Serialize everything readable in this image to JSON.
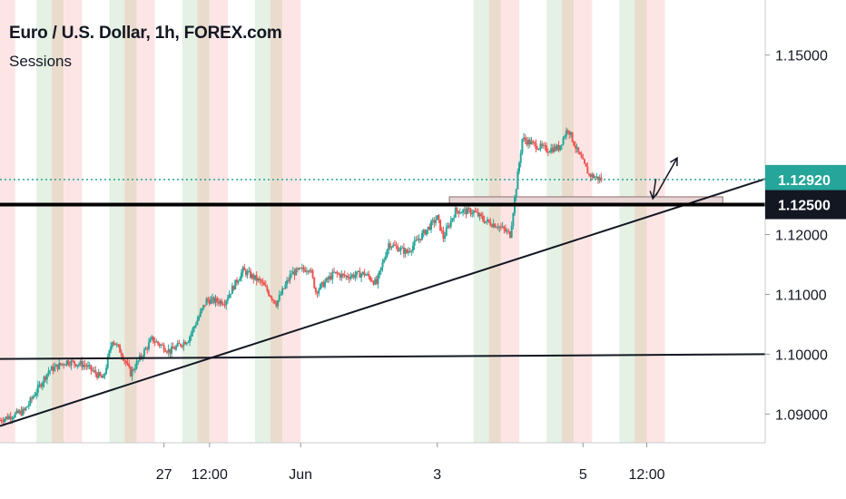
{
  "legend": {
    "title": "Euro / U.S. Dollar, 1h, FOREX.com",
    "subtitle": "Sessions"
  },
  "colors": {
    "up": "#26a69a",
    "down": "#ef5350",
    "session_green": "#e4f1e4",
    "session_red": "#fde5e5",
    "session_overlap": "#eadccd",
    "last_price_tag": "#26a69a",
    "level_tag": "#131722",
    "box_fill": "#e8d5d5"
  },
  "chart_data": {
    "type": "candlestick",
    "symbol": "Euro / U.S. Dollar",
    "interval": "1h",
    "source": "FOREX.com",
    "indicator": "Sessions",
    "y_axis": {
      "range": [
        1.0852,
        1.1592
      ],
      "ticks": [
        {
          "value": 1.15,
          "label": "1.15000"
        },
        {
          "value": 1.12,
          "label": "1.12000"
        },
        {
          "value": 1.11,
          "label": "1.11000"
        },
        {
          "value": 1.1,
          "label": "1.10000"
        },
        {
          "value": 1.09,
          "label": "1.09000"
        }
      ]
    },
    "x_axis": {
      "ticks": [
        {
          "t": 27,
          "label": "27"
        },
        {
          "t": 34.5,
          "label": "12:00"
        },
        {
          "t": 49.5,
          "label": "Jun"
        },
        {
          "t": 72,
          "label": "3"
        },
        {
          "t": 96,
          "label": "5"
        },
        {
          "t": 106.5,
          "label": "12:00"
        }
      ]
    },
    "price_tags": [
      {
        "value": 1.1292,
        "label": "1.12920",
        "kind": "last"
      },
      {
        "value": 1.125,
        "label": "1.12500",
        "kind": "level"
      }
    ],
    "path": [
      [
        0,
        1.089
      ],
      [
        4,
        1.0905
      ],
      [
        8,
        1.0972
      ],
      [
        11,
        1.0988
      ],
      [
        14,
        1.0982
      ],
      [
        17,
        1.0958
      ],
      [
        18.5,
        1.1025
      ],
      [
        20,
        1.1002
      ],
      [
        21.5,
        1.0968
      ],
      [
        25,
        1.1025
      ],
      [
        28,
        1.1005
      ],
      [
        31,
        1.1025
      ],
      [
        34,
        1.109
      ],
      [
        37,
        1.1088
      ],
      [
        40,
        1.114
      ],
      [
        43,
        1.112
      ],
      [
        45.5,
        1.1085
      ],
      [
        48,
        1.1135
      ],
      [
        51,
        1.1145
      ],
      [
        52,
        1.1105
      ],
      [
        55,
        1.1135
      ],
      [
        57,
        1.113
      ],
      [
        60,
        1.1135
      ],
      [
        62,
        1.1118
      ],
      [
        64,
        1.1185
      ],
      [
        67,
        1.117
      ],
      [
        70,
        1.1205
      ],
      [
        72,
        1.1228
      ],
      [
        73,
        1.1195
      ],
      [
        75,
        1.124
      ],
      [
        78,
        1.1238
      ],
      [
        80,
        1.1222
      ],
      [
        82,
        1.1215
      ],
      [
        84,
        1.12
      ],
      [
        85,
        1.128
      ],
      [
        86,
        1.136
      ],
      [
        88,
        1.135
      ],
      [
        90,
        1.1342
      ],
      [
        92,
        1.1345
      ],
      [
        93.5,
        1.1378
      ],
      [
        95,
        1.134
      ],
      [
        97,
        1.13
      ],
      [
        99,
        1.1292
      ]
    ],
    "lines": {
      "support_trendline": {
        "from": [
          0,
          1.088
        ],
        "to": [
          126,
          1.1293
        ]
      },
      "horizontal_trendline": {
        "from": [
          0,
          1.0992
        ],
        "to": [
          126,
          1.1
        ]
      },
      "resistance_level": {
        "value": 1.125
      },
      "current_price_line": {
        "value": 1.1292
      }
    },
    "zone_box": {
      "t_start": 74,
      "t_end": 119,
      "top": 1.1263,
      "bottom": 1.1252
    },
    "arrows": [
      {
        "from": [
          108,
          1.1265
        ],
        "to": [
          111.5,
          1.1328
        ]
      },
      {
        "from": [
          108,
          1.1293
        ],
        "to": [
          107.5,
          1.126
        ]
      }
    ],
    "sessions": [
      {
        "start": 0,
        "end": 2.5,
        "type": "red"
      },
      {
        "start": 6,
        "end": 8.5,
        "type": "green"
      },
      {
        "start": 8.5,
        "end": 10.5,
        "type": "overlap"
      },
      {
        "start": 10.5,
        "end": 13.5,
        "type": "red"
      },
      {
        "start": 18,
        "end": 20.5,
        "type": "green"
      },
      {
        "start": 20.5,
        "end": 22.5,
        "type": "overlap"
      },
      {
        "start": 22.5,
        "end": 25.5,
        "type": "red"
      },
      {
        "start": 30,
        "end": 32.5,
        "type": "green"
      },
      {
        "start": 32.5,
        "end": 34.5,
        "type": "overlap"
      },
      {
        "start": 34.5,
        "end": 37.5,
        "type": "red"
      },
      {
        "start": 42,
        "end": 44.5,
        "type": "green"
      },
      {
        "start": 44.5,
        "end": 46.5,
        "type": "overlap"
      },
      {
        "start": 46.5,
        "end": 49.5,
        "type": "red"
      },
      {
        "start": 78,
        "end": 80.5,
        "type": "green"
      },
      {
        "start": 80.5,
        "end": 82.5,
        "type": "overlap"
      },
      {
        "start": 82.5,
        "end": 85.5,
        "type": "red"
      },
      {
        "start": 90,
        "end": 92.5,
        "type": "green"
      },
      {
        "start": 92.5,
        "end": 94.5,
        "type": "overlap"
      },
      {
        "start": 94.5,
        "end": 97.5,
        "type": "red"
      },
      {
        "start": 102,
        "end": 104.5,
        "type": "green"
      },
      {
        "start": 104.5,
        "end": 106.5,
        "type": "overlap"
      },
      {
        "start": 106.5,
        "end": 109.5,
        "type": "red"
      }
    ]
  }
}
